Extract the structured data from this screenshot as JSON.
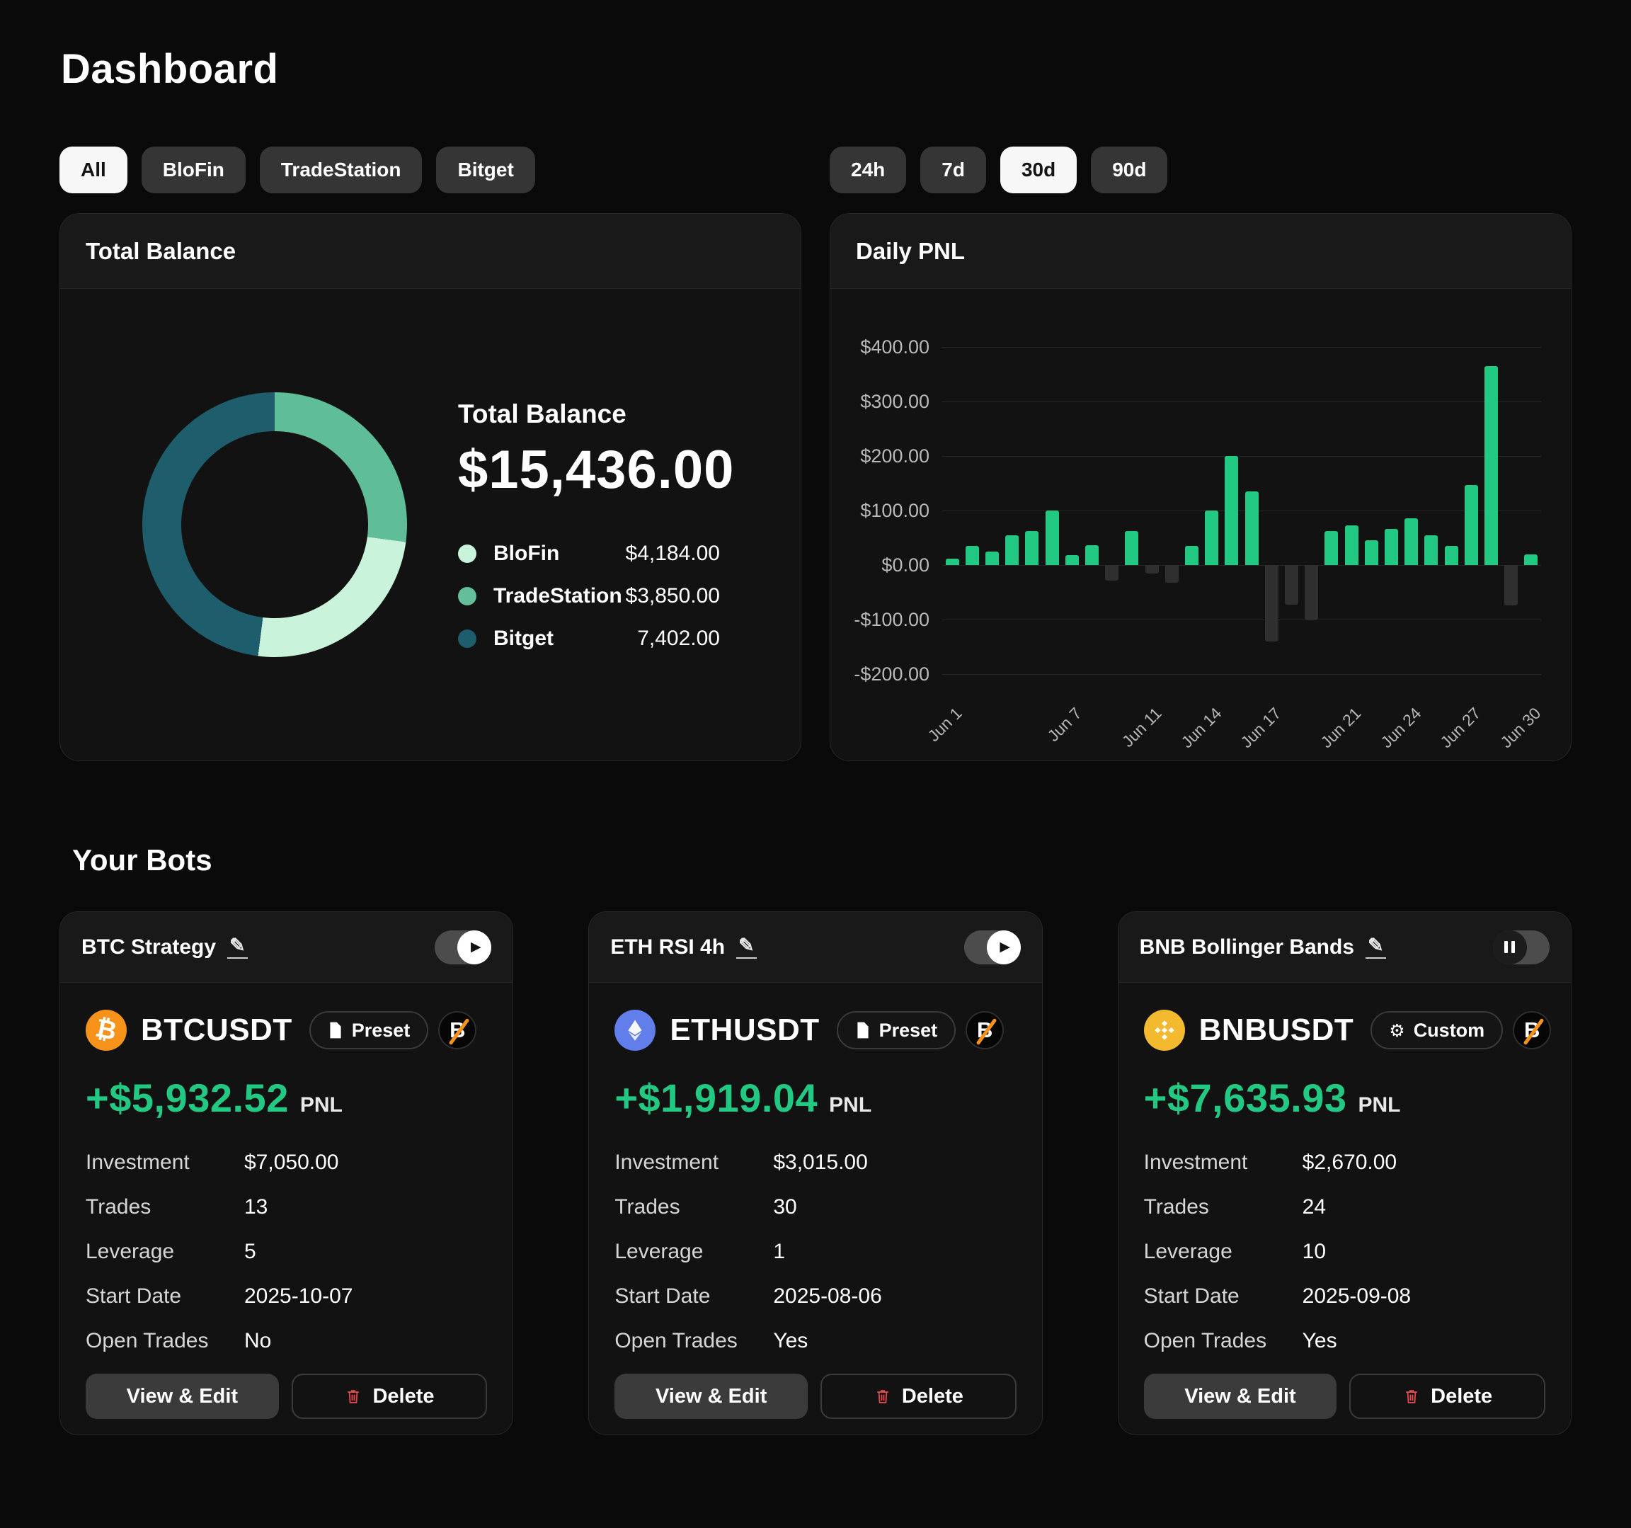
{
  "page": {
    "title": "Dashboard",
    "bots_heading": "Your Bots"
  },
  "exchange_filters": [
    {
      "label": "All",
      "active": true
    },
    {
      "label": "BloFin",
      "active": false
    },
    {
      "label": "TradeStation",
      "active": false
    },
    {
      "label": "Bitget",
      "active": false
    }
  ],
  "period_filters": [
    {
      "label": "24h",
      "active": false
    },
    {
      "label": "7d",
      "active": false
    },
    {
      "label": "30d",
      "active": true
    },
    {
      "label": "90d",
      "active": false
    }
  ],
  "balance_card": {
    "title": "Total Balance",
    "label": "Total Balance",
    "total": "$15,436.00",
    "donut": {
      "segments": [
        {
          "pct": 27.1,
          "color": "#5fbe97"
        },
        {
          "pct": 24.9,
          "color": "#c9f3da"
        },
        {
          "pct": 48.0,
          "color": "#1d5d6c"
        }
      ]
    },
    "legend": [
      {
        "name": "BloFin",
        "value": "$4,184.00",
        "color": "#c9f3da"
      },
      {
        "name": "TradeStation",
        "value": "$3,850.00",
        "color": "#62bf99"
      },
      {
        "name": "Bitget",
        "value": "7,402.00",
        "color": "#1d5d6c"
      }
    ]
  },
  "chart_data": {
    "type": "bar",
    "title": "Daily PNL",
    "x": [
      "Jun 1",
      "Jun 2",
      "Jun 3",
      "Jun 4",
      "Jun 5",
      "Jun 6",
      "Jun 7",
      "Jun 8",
      "Jun 9",
      "Jun 10",
      "Jun 11",
      "Jun 12",
      "Jun 13",
      "Jun 14",
      "Jun 15",
      "Jun 16",
      "Jun 17",
      "Jun 18",
      "Jun 19",
      "Jun 20",
      "Jun 21",
      "Jun 22",
      "Jun 23",
      "Jun 24",
      "Jun 25",
      "Jun 26",
      "Jun 27",
      "Jun 28",
      "Jun 29",
      "Jun 30"
    ],
    "values": [
      12,
      35,
      25,
      55,
      62,
      100,
      18,
      36,
      -28,
      62,
      -16,
      -32,
      35,
      100,
      200,
      135,
      -140,
      -73,
      -100,
      62,
      73,
      45,
      66,
      86,
      55,
      35,
      147,
      365,
      -74,
      20
    ],
    "x_tick_indices": [
      0,
      6,
      10,
      13,
      16,
      20,
      23,
      26,
      29
    ],
    "x_tick_labels": [
      "Jun 1",
      "Jun 7",
      "Jun 11",
      "Jun 14",
      "Jun 17",
      "Jun 21",
      "Jun 24",
      "Jun 27",
      "Jun 30"
    ],
    "y_ticks": [
      400,
      300,
      200,
      100,
      0,
      -100,
      -200
    ],
    "y_tick_labels": [
      "$400.00",
      "$300.00",
      "$200.00",
      "$100.00",
      "$0.00",
      "-$100.00",
      "-$200.00"
    ],
    "ylim": [
      -200,
      400
    ],
    "grid": true,
    "positive_color": "#22c983",
    "negative_color": "#2f2f2f"
  },
  "bots": [
    {
      "name": "BTC Strategy",
      "state": "running",
      "symbol": "BTCUSDT",
      "coin": "btc",
      "badge": {
        "type": "preset",
        "label": "Preset"
      },
      "exchange_badge": "B",
      "pnl": "+$5,932.52",
      "pnl_label": "PNL",
      "stats": [
        {
          "label": "Investment",
          "value": "$7,050.00"
        },
        {
          "label": "Trades",
          "value": "13"
        },
        {
          "label": "Leverage",
          "value": "5"
        },
        {
          "label": "Start Date",
          "value": "2025-10-07"
        },
        {
          "label": "Open Trades",
          "value": "No"
        }
      ],
      "actions": {
        "view": "View & Edit",
        "delete": "Delete"
      }
    },
    {
      "name": "ETH RSI 4h",
      "state": "running",
      "symbol": "ETHUSDT",
      "coin": "eth",
      "badge": {
        "type": "preset",
        "label": "Preset"
      },
      "exchange_badge": "B",
      "pnl": "+$1,919.04",
      "pnl_label": "PNL",
      "stats": [
        {
          "label": "Investment",
          "value": "$3,015.00"
        },
        {
          "label": "Trades",
          "value": "30"
        },
        {
          "label": "Leverage",
          "value": "1"
        },
        {
          "label": "Start Date",
          "value": "2025-08-06"
        },
        {
          "label": "Open Trades",
          "value": "Yes"
        }
      ],
      "actions": {
        "view": "View & Edit",
        "delete": "Delete"
      }
    },
    {
      "name": "BNB Bollinger Bands",
      "state": "paused",
      "symbol": "BNBUSDT",
      "coin": "bnb",
      "badge": {
        "type": "custom",
        "label": "Custom"
      },
      "exchange_badge": "B",
      "pnl": "+$7,635.93",
      "pnl_label": "PNL",
      "stats": [
        {
          "label": "Investment",
          "value": "$2,670.00"
        },
        {
          "label": "Trades",
          "value": "24"
        },
        {
          "label": "Leverage",
          "value": "10"
        },
        {
          "label": "Start Date",
          "value": "2025-09-08"
        },
        {
          "label": "Open Trades",
          "value": "Yes"
        }
      ],
      "actions": {
        "view": "View & Edit",
        "delete": "Delete"
      }
    }
  ]
}
